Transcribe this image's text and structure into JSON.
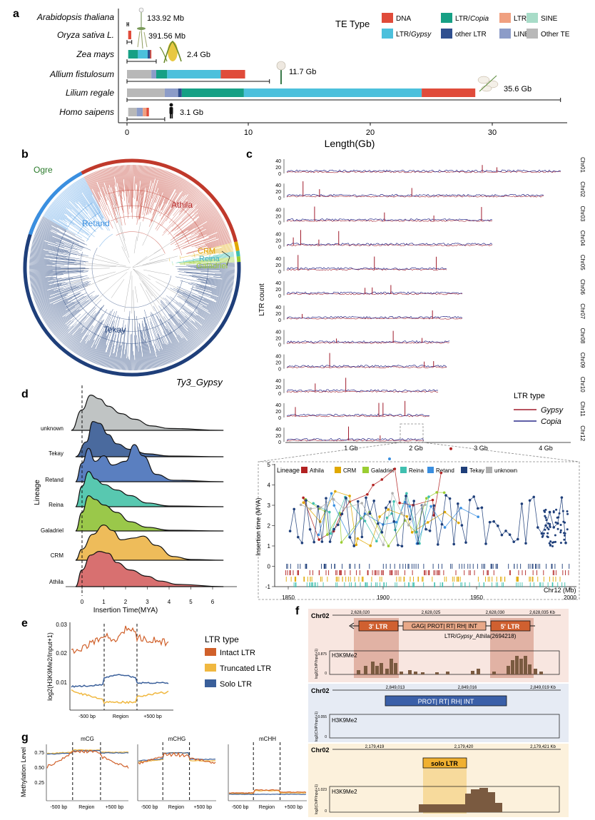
{
  "panels": {
    "a": "a",
    "b": "b",
    "c": "c",
    "d": "d",
    "e": "e",
    "f": "f",
    "g": "g"
  },
  "panel_a": {
    "legend_title": "TE Type",
    "legend": [
      {
        "label": "DNA",
        "color": "#e04b3a"
      },
      {
        "label": "LTR/",
        "label_italic": "Copia",
        "color": "#16a085"
      },
      {
        "label": "LTR",
        "color": "#f0a080"
      },
      {
        "label": "SINE",
        "color": "#a8dcc8"
      },
      {
        "label": "LTR/",
        "label_italic": "Gypsy",
        "color": "#4cc0dc"
      },
      {
        "label": "other LTR",
        "color": "#2f4f8f"
      },
      {
        "label": "LINE",
        "color": "#8c9cc8"
      },
      {
        "label": "Other TE",
        "color": "#b8b8b8"
      }
    ],
    "species": [
      {
        "name": "Arabidopsis thaliana",
        "size": "133.92 Mb",
        "genome_gb": 0.134
      },
      {
        "name": "Oryza sativa L.",
        "size": "391.56 Mb",
        "genome_gb": 0.392
      },
      {
        "name": "Zea mays",
        "size": "2.4 Gb",
        "genome_gb": 2.4
      },
      {
        "name": "Allium fistulosum",
        "size": "11.7 Gb",
        "genome_gb": 11.7
      },
      {
        "name": "Lilium regale",
        "size": "35.6 Gb",
        "genome_gb": 35.6
      },
      {
        "name": "Homo saipens",
        "size": "3.1 Gb",
        "genome_gb": 3.1
      }
    ],
    "x_ticks": [
      "0",
      "10",
      "20",
      "30"
    ],
    "xlabel": "Length(Gb)"
  },
  "panel_b": {
    "clades": {
      "ogre": "Ogre",
      "retand": "Retand",
      "athila": "Athila",
      "crm": "CRM",
      "reina": "Reina",
      "galadriel": "Galadriel",
      "tekay": "Tekay"
    },
    "title": "Ty3_Gypsy"
  },
  "panel_c": {
    "ylabel": "LTR count",
    "chromosomes": [
      "Chr01",
      "Chr02",
      "Chr03",
      "Chr04",
      "Chr05",
      "Chr06",
      "Chr07",
      "Chr08",
      "Chr09",
      "Chr10",
      "Chr11",
      "Chr12"
    ],
    "x_ticks": [
      "1 Gb",
      "2 Gb",
      "3 Gb",
      "4 Gb"
    ],
    "y_ticks": [
      "0",
      "20",
      "40"
    ],
    "legend_title": "LTR type",
    "gypsy": "Gypsy",
    "copia": "Copia",
    "inset": {
      "legend_title": "Lineage",
      "lineages": [
        {
          "name": "Athila",
          "color": "#b22222"
        },
        {
          "name": "CRM",
          "color": "#e0a800"
        },
        {
          "name": "Galadriel",
          "color": "#9acd32"
        },
        {
          "name": "Reina",
          "color": "#40c0b0"
        },
        {
          "name": "Retand",
          "color": "#3a8fe0"
        },
        {
          "name": "Tekay",
          "color": "#1f3f7a"
        },
        {
          "name": "unknown",
          "color": "#b0b0b0"
        }
      ],
      "ylabel": "Insertion time (MYA)",
      "y_ticks": [
        "-1",
        "0",
        "1",
        "2",
        "3",
        "4",
        "5"
      ],
      "x_ticks": [
        "1850",
        "1900",
        "1950",
        "2000"
      ],
      "xlabel": "Chr12 (Mb)"
    }
  },
  "panel_d": {
    "ylabel": "Lineage",
    "xlabel": "Insertion Time(MYA)",
    "lineages": [
      "unknown",
      "Tekay",
      "Retand",
      "Reina",
      "Galadriel",
      "CRM",
      "Athila"
    ],
    "x_ticks": [
      "0",
      "1",
      "2",
      "3",
      "4",
      "5",
      "6"
    ]
  },
  "panel_e": {
    "ylabel": "log2(H3K9Me2/Input+1)",
    "y_ticks": [
      "0.01",
      "0.02",
      "0.03"
    ],
    "x_ticks": [
      "-500 bp",
      "Region",
      "+500 bp"
    ],
    "legend_title": "LTR type",
    "legend": [
      {
        "label": "Intact LTR",
        "color": "#d0602a"
      },
      {
        "label": "Truncated LTR",
        "color": "#f0b840"
      },
      {
        "label": "Solo LTR",
        "color": "#3a5f9a"
      }
    ]
  },
  "panel_f": {
    "chr": "Chr02",
    "track_label": "H3K9Me2",
    "ylabel": "log2(ChIP/Input+1)",
    "rows": [
      {
        "ticks": [
          "2,628,020",
          "2,628,025",
          "2,628,030",
          "2,628,035 Kb"
        ],
        "ymax": "0.875",
        "ymin": "0",
        "three_ltr": "3' LTR",
        "internal": "GAG| PROT| RT| RH| INT",
        "five_ltr": "5' LTR",
        "caption_pre": "LTR/",
        "caption_ital": "Gypsy",
        "caption_post": "_Athila(2694218)"
      },
      {
        "ticks": [
          "2,849,013",
          "2,849,016",
          "2,849,019 Kb"
        ],
        "ymax": "0.055",
        "ymin": "0",
        "internal": "PROT| RT| RH| INT"
      },
      {
        "ticks": [
          "2,179,419",
          "2,179,420",
          "2,179,421 Kb"
        ],
        "ymax": "1.023",
        "ymin": "0",
        "solo": "solo LTR"
      }
    ]
  },
  "panel_g": {
    "ylabel": "Methylation Level",
    "titles": [
      "mCG",
      "mCHG",
      "mCHH"
    ],
    "y_ticks": [
      "0.75",
      "0.50",
      "0.25"
    ],
    "x_ticks": [
      "-500 bp",
      "Region",
      "+500 bp"
    ]
  }
}
